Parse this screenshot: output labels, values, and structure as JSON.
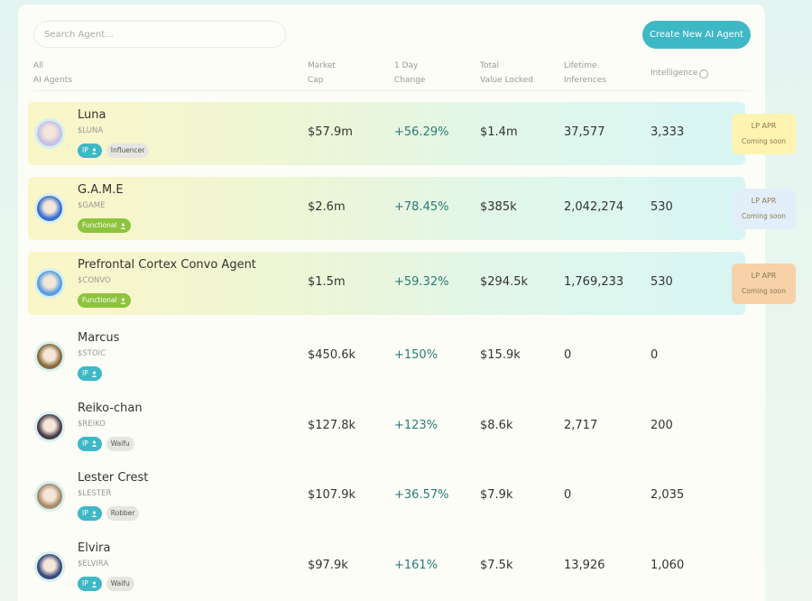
{
  "search": {
    "placeholder": "Search Agent..."
  },
  "create_button": "Create New AI Agent",
  "columns": [
    [
      "All",
      "AI Agents"
    ],
    [
      "Market",
      "Cap"
    ],
    [
      "1 Day",
      "Change"
    ],
    [
      "Total",
      "Value Locked"
    ],
    [
      "Lifetime",
      "Inferences"
    ],
    [
      "Intelligence"
    ]
  ],
  "rows": [
    {
      "name": "Luna",
      "ticker": "$LUNA",
      "tags": [
        {
          "label": "IP",
          "color": "#3fb8c6"
        },
        {
          "label": "Influencer",
          "color": "#e6e6e0"
        }
      ],
      "market_cap": "$57.9m",
      "change": "+56.29%",
      "tvl": "$1.4m",
      "inferences": "37,577",
      "intelligence": "3,333",
      "lp_apr": {
        "label": "LP APR",
        "status": "Coming soon",
        "color": "#fcf4b0"
      },
      "avatar": "#c9c0e8"
    },
    {
      "name": "G.A.M.E",
      "ticker": "$GAME",
      "tags": [
        {
          "label": "Functional",
          "color": "#8cc43c"
        }
      ],
      "market_cap": "$2.6m",
      "change": "+78.45%",
      "tvl": "$385k",
      "inferences": "2,042,274",
      "intelligence": "530",
      "lp_apr": {
        "label": "LP APR",
        "status": "Coming soon",
        "color": "#e2effa"
      },
      "avatar": "#3a6fd0"
    },
    {
      "name": "Prefrontal Cortex Convo Agent",
      "ticker": "$CONVO",
      "tags": [
        {
          "label": "Functional",
          "color": "#8cc43c"
        }
      ],
      "market_cap": "$1.5m",
      "change": "+59.32%",
      "tvl": "$294.5k",
      "inferences": "1,769,233",
      "intelligence": "530",
      "lp_apr": {
        "label": "LP APR",
        "status": "Coming soon",
        "color": "#f7d2a8"
      },
      "avatar": "#5a9ee0"
    },
    {
      "name": "Marcus",
      "ticker": "$STOIC",
      "tags": [
        {
          "label": "IP",
          "color": "#3fb8c6"
        }
      ],
      "market_cap": "$450.6k",
      "change": "+150%",
      "tvl": "$15.9k",
      "inferences": "0",
      "intelligence": "0",
      "avatar": "#8a6a3a"
    },
    {
      "name": "Reiko-chan",
      "ticker": "$REIKO",
      "tags": [
        {
          "label": "IP",
          "color": "#3fb8c6"
        },
        {
          "label": "Waifu",
          "color": "#e6e6e0"
        }
      ],
      "market_cap": "$127.8k",
      "change": "+123%",
      "tvl": "$8.6k",
      "inferences": "2,717",
      "intelligence": "200",
      "avatar": "#4a3a4a"
    },
    {
      "name": "Lester Crest",
      "ticker": "$LESTER",
      "tags": [
        {
          "label": "IP",
          "color": "#3fb8c6"
        },
        {
          "label": "Robber",
          "color": "#e6e6e0"
        }
      ],
      "market_cap": "$107.9k",
      "change": "+36.57%",
      "tvl": "$7.9k",
      "inferences": "0",
      "intelligence": "2,035",
      "avatar": "#a88a6a"
    },
    {
      "name": "Elvira",
      "ticker": "$ELVIRA",
      "tags": [
        {
          "label": "IP",
          "color": "#3fb8c6"
        },
        {
          "label": "Waifu",
          "color": "#e6e6e0"
        }
      ],
      "market_cap": "$97.9k",
      "change": "+161%",
      "tvl": "$7.5k",
      "inferences": "13,926",
      "intelligence": "1,060",
      "avatar": "#3a4a7a"
    }
  ]
}
